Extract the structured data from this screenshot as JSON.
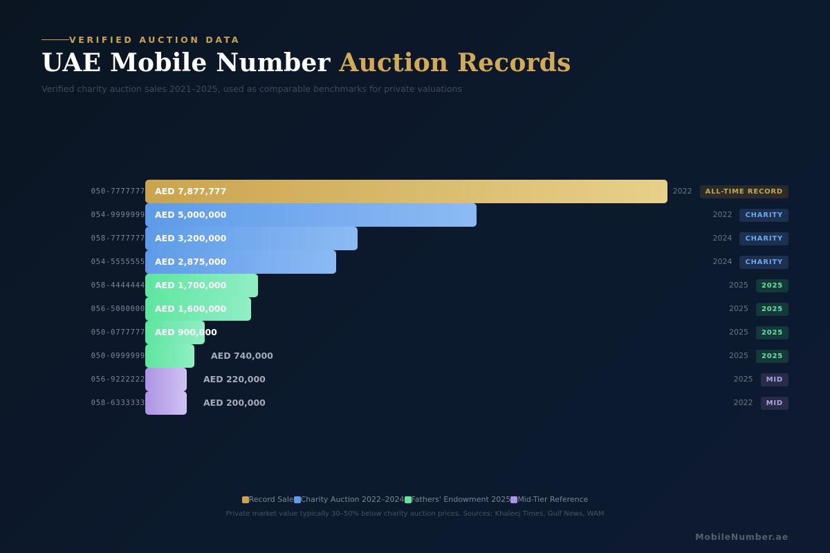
{
  "header": {
    "eyebrow": "VERIFIED AUCTION DATA",
    "title_part1": "UAE Mobile Number ",
    "title_part2": "Auction Records",
    "subtitle": "Verified charity auction sales 2021–2025, used as comparable benchmarks for private valuations"
  },
  "colors": {
    "gold": "#c9a44e",
    "blue": "#5e9be8",
    "green": "#5ee69f",
    "purple": "#ab94e4",
    "background": "#0c1a2e"
  },
  "chart_data": {
    "type": "bar",
    "orientation": "horizontal",
    "xlim": [
      0,
      7877777
    ],
    "categories": [
      "050-7777777",
      "054-9999999",
      "058-7777777",
      "054-5555555",
      "058-4444444",
      "056-5000000",
      "050-0777777",
      "050-0999999",
      "056-9222222",
      "058-6333333"
    ],
    "values": [
      7877777,
      5000000,
      3200000,
      2875000,
      1700000,
      1600000,
      900000,
      740000,
      220000,
      200000
    ],
    "value_labels": [
      "AED 7,877,777",
      "AED 5,000,000",
      "AED 3,200,000",
      "AED 2,875,000",
      "AED 1,700,000",
      "AED 1,600,000",
      "AED 900,000",
      "AED 740,000",
      "AED 220,000",
      "AED 200,000"
    ],
    "years": [
      "2022",
      "2022",
      "2024",
      "2024",
      "2025",
      "2025",
      "2025",
      "2025",
      "2025",
      "2022"
    ],
    "tags": [
      "ALL-TIME RECORD",
      "CHARITY",
      "CHARITY",
      "CHARITY",
      "2025",
      "2025",
      "2025",
      "2025",
      "MID",
      "MID"
    ],
    "groups": [
      "gold",
      "blue",
      "blue",
      "blue",
      "green",
      "green",
      "green",
      "green",
      "purple",
      "purple"
    ],
    "legend": [
      {
        "label": "Record Sale",
        "group": "gold"
      },
      {
        "label": "Charity Auction 2022–2024",
        "group": "blue"
      },
      {
        "label": "Fathers' Endowment 2025",
        "group": "green"
      },
      {
        "label": "Mid-Tier Reference",
        "group": "purple"
      }
    ],
    "legend_position": "bottom-center",
    "grid": false
  },
  "footer": {
    "note": "Private market value typically 30–50% below charity auction prices. Sources: Khaleej Times, Gulf News, WAM",
    "brand": "MobileNumber.ae"
  }
}
